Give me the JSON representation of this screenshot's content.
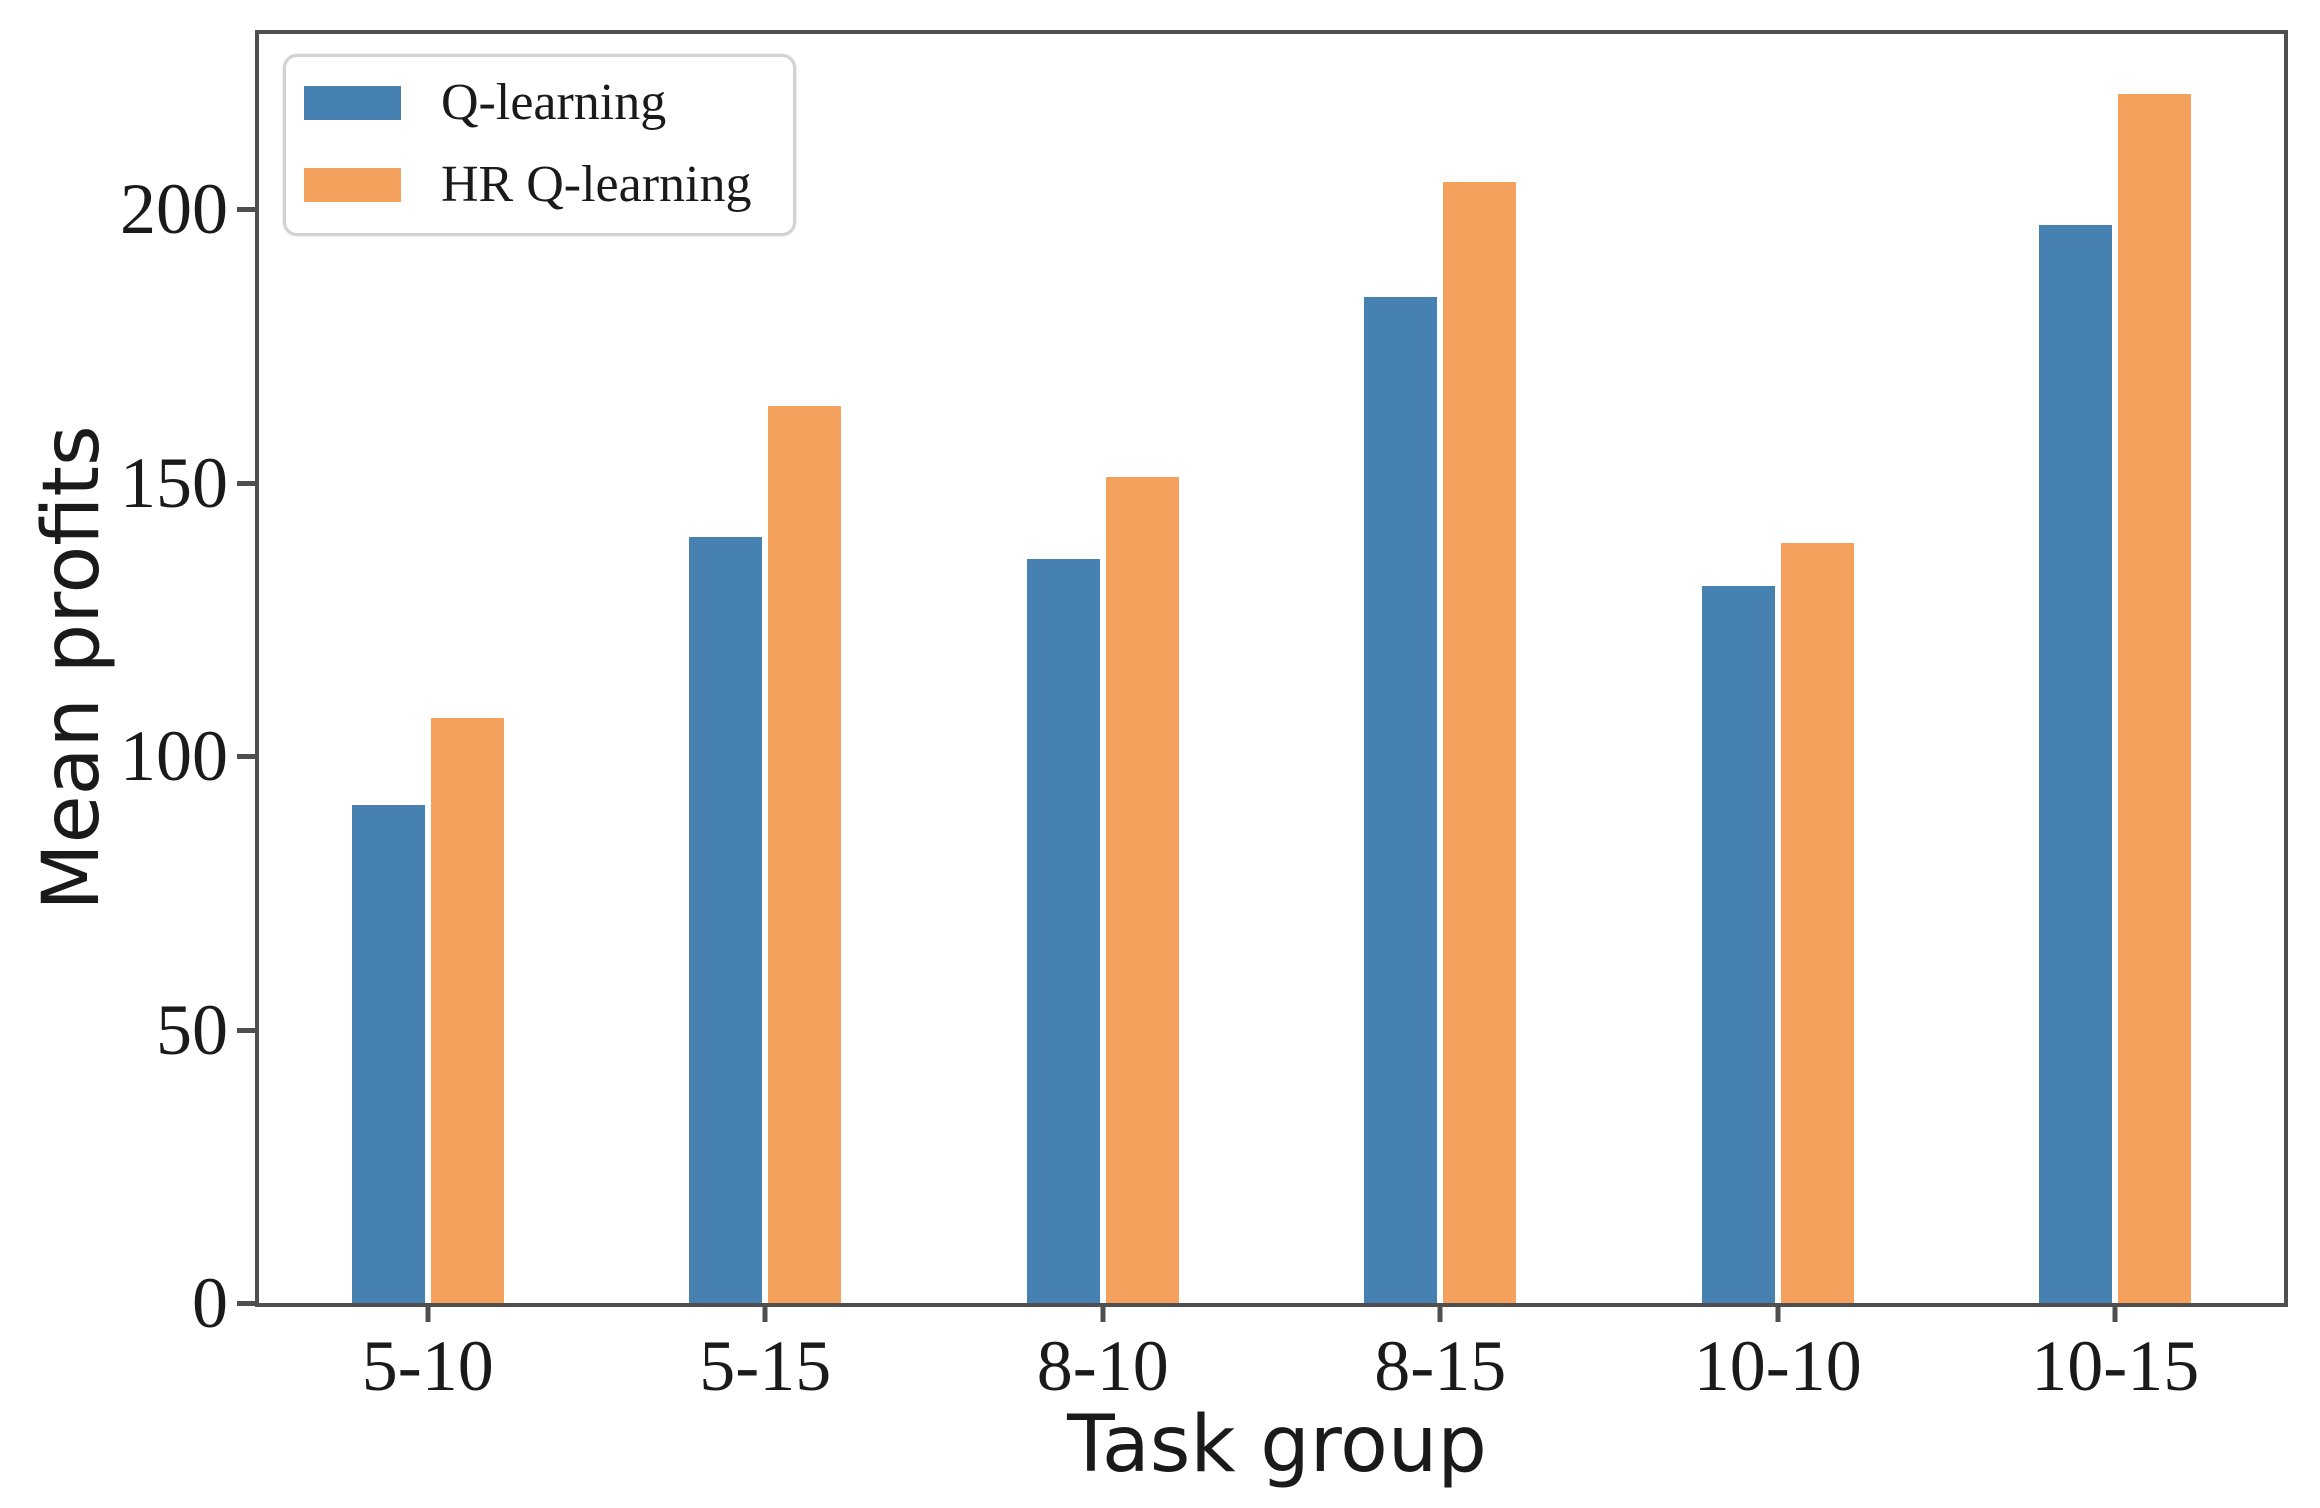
{
  "chart_data": {
    "type": "bar",
    "title": "",
    "xlabel": "Task group",
    "ylabel": "Mean profits",
    "categories": [
      "5-10",
      "5-15",
      "8-10",
      "8-15",
      "10-10",
      "10-15"
    ],
    "series": [
      {
        "name": "Q-learning",
        "color": "#4781b2",
        "values": [
          91,
          140,
          136,
          184,
          131,
          197
        ]
      },
      {
        "name": "HR Q-learning",
        "color": "#f3a15c",
        "values": [
          107,
          164,
          151,
          205,
          139,
          221
        ]
      }
    ],
    "ylim": [
      0,
      232
    ],
    "yticks": [
      0,
      50,
      100,
      150,
      200
    ],
    "grid": false,
    "legend_position": "upper left"
  }
}
